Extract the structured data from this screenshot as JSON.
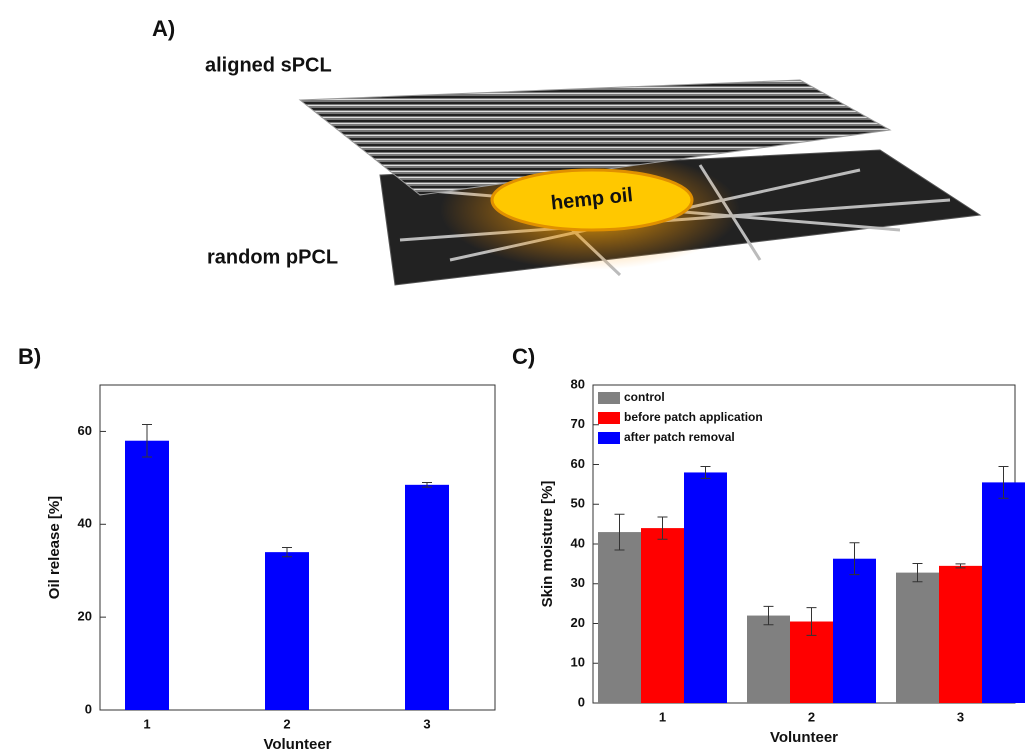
{
  "diagram": {
    "panel_label": "A)",
    "top_label": "aligned sPCL",
    "center_label": "hemp oil",
    "bottom_label": "random pPCL"
  },
  "chart_data": [
    {
      "type": "bar",
      "panel_label": "B)",
      "x_label": "Volunteer",
      "y_label": "Oil release [%]",
      "categories": [
        "1",
        "2",
        "3"
      ],
      "series": [
        {
          "name": null,
          "color": "#0000ff",
          "values": [
            58,
            34,
            48.5
          ],
          "errors": [
            3.5,
            1,
            0.5
          ]
        }
      ],
      "ylim": [
        0,
        70
      ],
      "yticks": [
        0,
        20,
        40,
        60
      ]
    },
    {
      "type": "bar",
      "panel_label": "C)",
      "x_label": "Volunteer",
      "y_label": "Skin moisture [%]",
      "categories": [
        "1",
        "2",
        "3"
      ],
      "series": [
        {
          "name": "control",
          "color": "#808080",
          "values": [
            43,
            22,
            32.8
          ],
          "errors": [
            4.5,
            2.3,
            2.3
          ]
        },
        {
          "name": "before patch application",
          "color": "#ff0000",
          "values": [
            44,
            20.5,
            34.5
          ],
          "errors": [
            2.8,
            3.5,
            0.5
          ]
        },
        {
          "name": "after patch removal",
          "color": "#0000ff",
          "values": [
            58,
            36.3,
            55.5
          ],
          "errors": [
            1.5,
            4,
            4
          ]
        }
      ],
      "ylim": [
        0,
        80
      ],
      "yticks": [
        0,
        10,
        20,
        30,
        40,
        50,
        60,
        70,
        80
      ],
      "legend": "upper-left"
    }
  ]
}
